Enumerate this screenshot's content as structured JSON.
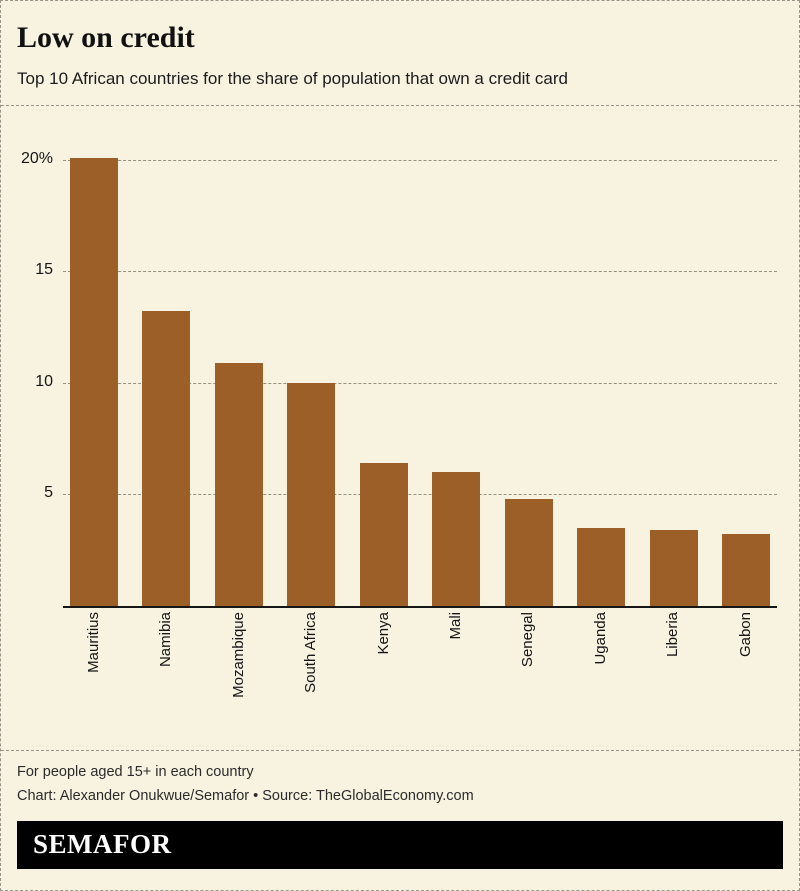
{
  "header": {
    "title": "Low on credit",
    "subtitle": "Top 10 African countries for the share of population that own a credit card"
  },
  "chart_data": {
    "type": "bar",
    "title": "Low on credit",
    "subtitle": "Top 10 African countries for the share of population that own a credit card",
    "categories": [
      "Mauritius",
      "Namibia",
      "Mozambique",
      "South Africa",
      "Kenya",
      "Mali",
      "Senegal",
      "Uganda",
      "Liberia",
      "Gabon"
    ],
    "values": [
      20.1,
      13.2,
      10.9,
      10.0,
      6.4,
      6.0,
      4.8,
      3.5,
      3.4,
      3.2
    ],
    "xlabel": "",
    "ylabel": "",
    "ylim": [
      0,
      21
    ],
    "yticks": [
      5,
      10,
      15,
      20
    ],
    "ytick_labels": [
      "5",
      "10",
      "15",
      "20%"
    ],
    "grid": "horizontal dashed",
    "legend": "none",
    "bar_color": "#9c5f27"
  },
  "footer": {
    "note": "For people aged 15+ in each country",
    "credit": "Chart: Alexander Onukwue/Semafor • Source: TheGlobalEconomy.com",
    "logo": "SEMAFOR"
  },
  "colors": {
    "background": "#f8f3e1",
    "bar": "#9c5f27",
    "text": "#161616",
    "grid": "#94917f",
    "logo_background": "#000000",
    "logo_text": "#ffffff"
  }
}
